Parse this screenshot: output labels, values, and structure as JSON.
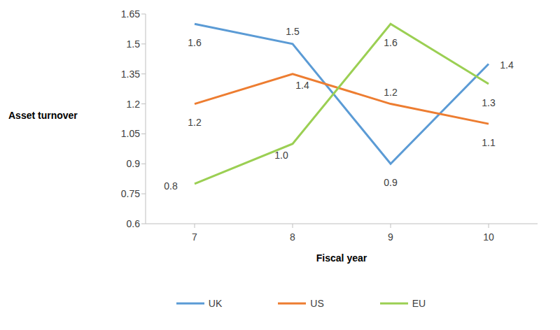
{
  "chart_data": {
    "type": "line",
    "x_label": "Fiscal year",
    "y_label": "Asset turnover",
    "categories": [
      "7",
      "8",
      "9",
      "10"
    ],
    "series": [
      {
        "name": "UK",
        "color": "#5b9bd5",
        "values": [
          1.6,
          1.5,
          0.9,
          1.4
        ],
        "value_labels": [
          "1.6",
          "1.5",
          "0.9",
          "1.4"
        ]
      },
      {
        "name": "US",
        "color": "#ed7d31",
        "values": [
          1.2,
          1.35,
          1.2,
          1.1
        ],
        "value_labels": [
          "1.2",
          "1.4",
          "1.2",
          "1.1"
        ]
      },
      {
        "name": "EU",
        "color": "#9bcf53",
        "values": [
          0.8,
          1.0,
          1.6,
          1.3
        ],
        "value_labels": [
          "0.8",
          "1.0",
          "1.6",
          "1.3"
        ]
      }
    ],
    "ylim": [
      0.6,
      1.65
    ],
    "yticks": [
      0.6,
      0.75,
      0.9,
      1.05,
      1.2,
      1.35,
      1.5,
      1.65
    ],
    "grid": false,
    "legend": "bottom",
    "data_labels": true
  }
}
